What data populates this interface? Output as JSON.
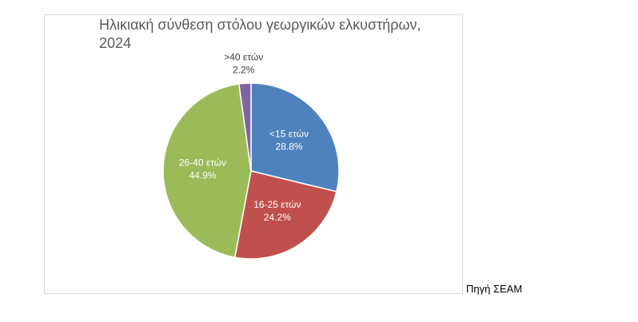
{
  "chart_data": {
    "type": "pie",
    "title": "Ηλικιακή σύνθεση στόλου γεωργικών ελκυστήρων, 2024",
    "categories": [
      "<15 ετών",
      "16-25 ετών",
      "26-40 ετών",
      ">40 ετών"
    ],
    "values": [
      28.8,
      24.2,
      44.9,
      2.2
    ],
    "value_labels": [
      "28.8%",
      "24.2%",
      "44.9%",
      "2.2%"
    ],
    "colors": [
      "#4f81bd",
      "#c0504d",
      "#9bbb59",
      "#8064a2"
    ],
    "source": "Πηγή ΣΕΑΜ"
  }
}
